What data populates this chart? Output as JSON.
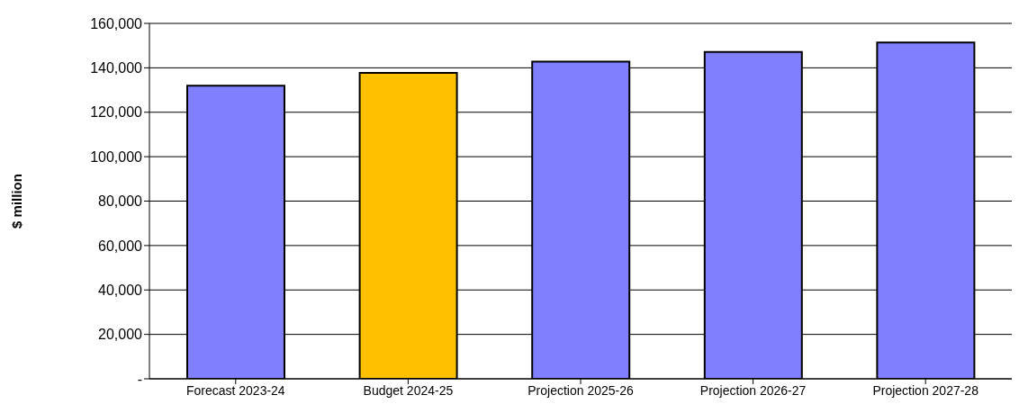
{
  "chart_data": {
    "type": "bar",
    "ylabel": "$ million",
    "categories": [
      "Forecast 2023-24",
      "Budget 2024-25",
      "Projection 2025-26",
      "Projection 2026-27",
      "Projection 2027-28"
    ],
    "values": [
      131900,
      137700,
      142800,
      147100,
      151400
    ],
    "colors": [
      "#8080ff",
      "#ffc000",
      "#8080ff",
      "#8080ff",
      "#8080ff"
    ],
    "ylim": [
      0,
      160000
    ],
    "yticks": [
      {
        "value": 0,
        "label": "-"
      },
      {
        "value": 20000,
        "label": "20,000"
      },
      {
        "value": 40000,
        "label": "40,000"
      },
      {
        "value": 60000,
        "label": "60,000"
      },
      {
        "value": 80000,
        "label": "80,000"
      },
      {
        "value": 100000,
        "label": "100,000"
      },
      {
        "value": 120000,
        "label": "120,000"
      },
      {
        "value": 140000,
        "label": "140,000"
      },
      {
        "value": 160000,
        "label": "160,000"
      }
    ],
    "grid": "y"
  }
}
